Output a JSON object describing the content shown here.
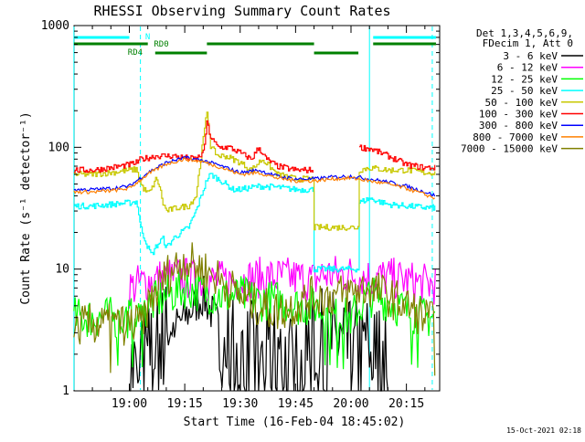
{
  "chart_data": {
    "type": "line",
    "title": "RHESSI Observing Summary Count Rates",
    "xlabel": "Start Time (16-Feb-04 18:45:02)",
    "ylabel": "Count Rate (s⁻¹ detector⁻¹)",
    "yscale": "log",
    "ylim": [
      1,
      1000
    ],
    "xlim": [
      "18:45:02",
      "20:24:00"
    ],
    "y_ticks": [
      "1",
      "10",
      "100",
      "1000"
    ],
    "x_ticks": [
      "19:00",
      "19:15",
      "19:30",
      "19:45",
      "20:00",
      "20:15"
    ],
    "footer_date": "15-Oct-2021 02:18",
    "legend": {
      "header": [
        "Det 1,3,4,5,6,9,",
        "FDecim 1, Att 0"
      ],
      "placement": "right"
    },
    "flags": [
      {
        "name": "N",
        "color": "#00ffff",
        "intervals": [
          [
            "18:45",
            "19:00"
          ],
          [
            "20:06",
            "20:23"
          ]
        ]
      },
      {
        "name": "RD0",
        "color": "#008000",
        "intervals": [
          [
            "19:21",
            "19:50"
          ],
          [
            "20:06",
            "20:23"
          ]
        ]
      },
      {
        "name": "RD4",
        "color": "#008000",
        "intervals": [
          [
            "19:07",
            "19:21"
          ],
          [
            "19:50",
            "20:02"
          ]
        ]
      },
      {
        "name": "",
        "color": "#008000",
        "intervals": [
          [
            "18:45",
            "19:05"
          ]
        ]
      }
    ],
    "vertical_markers": [
      {
        "time": "18:45",
        "color": "#00ffff",
        "style": "solid"
      },
      {
        "time": "19:03",
        "color": "#00ffff",
        "style": "dashed"
      },
      {
        "time": "20:05",
        "color": "#00ffff",
        "style": "solid"
      },
      {
        "time": "20:22",
        "color": "#00ffff",
        "style": "dashed"
      }
    ],
    "series": [
      {
        "name": "3 - 6 keV",
        "color": "#000000",
        "style": "noisy",
        "x": [
          "19:00",
          "19:03",
          "19:05",
          "19:10",
          "19:15",
          "19:20",
          "19:25",
          "19:30",
          "19:35",
          "19:40",
          "19:45",
          "19:50",
          "19:55",
          "20:00",
          "20:05",
          "20:10"
        ],
        "y": [
          1.5,
          1.5,
          2,
          3,
          4,
          6,
          3,
          2,
          2,
          2,
          1.5,
          2.5,
          2.5,
          2,
          2.5,
          1.5
        ]
      },
      {
        "name": "6 - 12 keV",
        "color": "#ff00ff",
        "style": "noisy",
        "x": [
          "19:00",
          "19:05",
          "19:10",
          "19:15",
          "19:20",
          "19:25",
          "19:30",
          "19:35",
          "19:40",
          "19:45",
          "19:50",
          "19:52",
          "19:55",
          "20:00",
          "20:05",
          "20:10",
          "20:15",
          "20:20",
          "20:23"
        ],
        "y": [
          7,
          8,
          8.5,
          8.5,
          8,
          8,
          8,
          8.5,
          8.5,
          8.5,
          8,
          9,
          9,
          9,
          8.5,
          8.5,
          8,
          7.5,
          7.5
        ]
      },
      {
        "name": "12 - 25 keV",
        "color": "#00ff00",
        "style": "noisy",
        "x": [
          "18:45",
          "18:55",
          "19:00",
          "19:03",
          "19:05",
          "19:10",
          "19:15",
          "19:20",
          "19:25",
          "19:30",
          "19:35",
          "19:40",
          "19:45",
          "19:50",
          "19:55",
          "20:00",
          "20:05",
          "20:10",
          "20:15",
          "20:20",
          "20:23"
        ],
        "y": [
          4,
          4,
          4,
          4,
          5,
          6,
          7,
          6.5,
          6,
          6,
          5.5,
          5.5,
          5,
          5,
          4,
          4,
          6,
          5.5,
          4.5,
          4,
          4
        ]
      },
      {
        "name": "25 - 50 keV",
        "color": "#00ffff",
        "style": "step",
        "x": [
          "18:45",
          "18:50",
          "18:55",
          "19:00",
          "19:02",
          "19:03",
          "19:05",
          "19:06",
          "19:07",
          "19:09",
          "19:10",
          "19:12",
          "19:14",
          "19:16",
          "19:18",
          "19:20",
          "19:21",
          "19:22",
          "19:24",
          "19:26",
          "19:28",
          "19:30",
          "19:35",
          "19:40",
          "19:45",
          "19:50",
          "19:50",
          "19:57",
          "20:00",
          "20:02",
          "20:02",
          "20:05",
          "20:10",
          "20:15",
          "20:20",
          "20:23"
        ],
        "y": [
          33,
          33,
          34,
          35,
          36,
          22,
          15,
          13,
          15,
          18,
          15,
          18,
          20,
          22,
          30,
          45,
          55,
          60,
          55,
          50,
          45,
          45,
          48,
          47,
          45,
          45,
          10,
          10,
          10,
          10,
          35,
          38,
          34,
          33,
          32,
          32
        ]
      },
      {
        "name": "50 - 100 keV",
        "color": "#c8c800",
        "style": "step",
        "x": [
          "18:45",
          "18:50",
          "18:55",
          "19:00",
          "19:02",
          "19:03",
          "19:04",
          "19:05",
          "19:06",
          "19:07",
          "19:08",
          "19:09",
          "19:10",
          "19:13",
          "19:16",
          "19:18",
          "19:20",
          "19:21",
          "19:22",
          "19:24",
          "19:26",
          "19:30",
          "19:33",
          "19:35",
          "19:36",
          "19:40",
          "19:45",
          "19:50",
          "19:50",
          "19:55",
          "20:00",
          "20:02",
          "20:02",
          "20:05",
          "20:10",
          "20:15",
          "20:20",
          "20:23"
        ],
        "y": [
          60,
          60,
          62,
          65,
          66,
          50,
          45,
          42,
          45,
          55,
          50,
          35,
          30,
          32,
          33,
          40,
          120,
          200,
          100,
          85,
          85,
          75,
          65,
          75,
          80,
          60,
          55,
          55,
          22,
          22,
          22,
          22,
          65,
          68,
          65,
          65,
          62,
          62
        ]
      },
      {
        "name": "100 - 300 keV",
        "color": "#ff0000",
        "style": "step",
        "x": [
          "18:45",
          "18:50",
          "18:55",
          "19:00",
          "19:02",
          "19:03",
          "19:05",
          "19:07",
          "19:09",
          "19:12",
          "19:15",
          "19:18",
          "19:20",
          "19:21",
          "19:22",
          "19:24",
          "19:27",
          "19:30",
          "19:33",
          "19:35",
          "19:37",
          "19:40",
          "19:45",
          "19:50",
          "19:50",
          "20:02",
          "20:02",
          "20:05",
          "20:10",
          "20:15",
          "20:20",
          "20:23"
        ],
        "y": [
          65,
          65,
          68,
          72,
          75,
          80,
          82,
          85,
          85,
          85,
          82,
          80,
          90,
          160,
          120,
          100,
          100,
          90,
          80,
          100,
          80,
          70,
          65,
          65,
          null,
          null,
          100,
          98,
          85,
          72,
          68,
          68
        ]
      },
      {
        "name": "300 - 800 keV",
        "color": "#0000ff",
        "style": "smooth",
        "x": [
          "18:45",
          "18:50",
          "18:55",
          "19:00",
          "19:05",
          "19:10",
          "19:15",
          "19:20",
          "19:25",
          "19:30",
          "19:35",
          "19:40",
          "19:45",
          "19:50",
          "19:55",
          "20:00",
          "20:05",
          "20:10",
          "20:15",
          "20:20",
          "20:23"
        ],
        "y": [
          45,
          45,
          46,
          48,
          62,
          75,
          82,
          78,
          70,
          62,
          65,
          58,
          55,
          55,
          57,
          58,
          55,
          52,
          48,
          43,
          40
        ]
      },
      {
        "name": "800 - 7000 keV",
        "color": "#ff8000",
        "style": "smooth",
        "x": [
          "18:45",
          "18:50",
          "18:55",
          "19:00",
          "19:05",
          "19:10",
          "19:15",
          "19:20",
          "19:25",
          "19:30",
          "19:35",
          "19:40",
          "19:45",
          "19:50",
          "19:55",
          "20:00",
          "20:05",
          "20:10",
          "20:15",
          "20:20",
          "20:23"
        ],
        "y": [
          43,
          43,
          44,
          46,
          60,
          73,
          80,
          76,
          68,
          60,
          62,
          56,
          53,
          53,
          55,
          56,
          53,
          50,
          46,
          41,
          38
        ]
      },
      {
        "name": "7000 - 15000 keV",
        "color": "#808000",
        "style": "noisy",
        "x": [
          "18:45",
          "18:55",
          "19:00",
          "19:03",
          "19:05",
          "19:10",
          "19:15",
          "19:20",
          "19:25",
          "19:30",
          "19:35",
          "19:40",
          "19:45",
          "19:50",
          "19:55",
          "20:00",
          "20:05",
          "20:10",
          "20:15",
          "20:20",
          "20:23"
        ],
        "y": [
          3.5,
          3.5,
          3.5,
          3.5,
          5,
          9,
          12,
          10,
          8,
          6,
          5,
          4.5,
          5,
          6,
          6,
          6.5,
          7,
          6,
          5,
          4,
          3.5
        ]
      }
    ]
  }
}
